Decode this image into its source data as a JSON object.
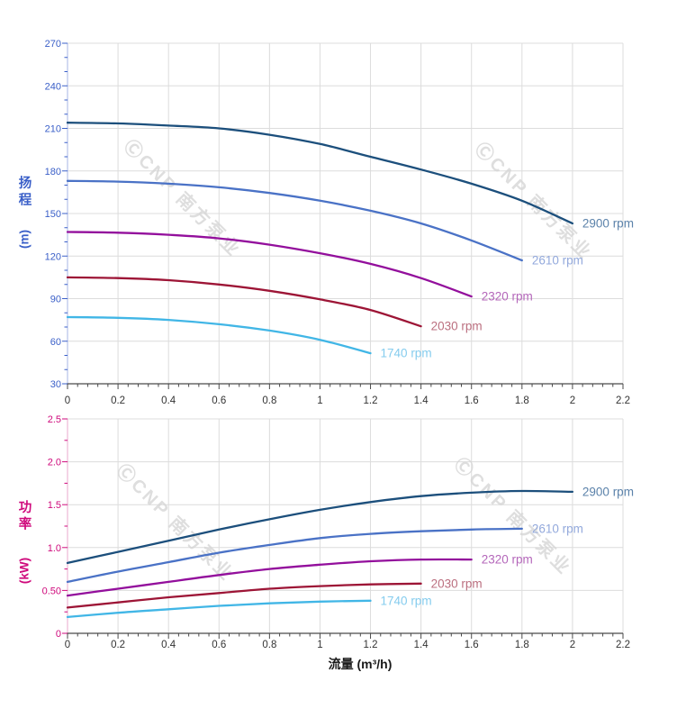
{
  "watermark": {
    "logo_glyph": "Ⓒ",
    "text": "CNP 南方泵业",
    "color": "#d6d6d6"
  },
  "x_axis_title": "流量 (m³/h)",
  "chart_data": [
    {
      "id": "head-vs-flow",
      "type": "line",
      "title": "",
      "ylabel": "扬程",
      "ylabel_unit": "(m)",
      "xlabel": "",
      "axis_color": "#3a5fc8",
      "axis_line_color": "#b6c1e8",
      "xlim": [
        0,
        2.2
      ],
      "ylim": [
        30,
        270
      ],
      "grid": true,
      "legend_position": "inline-right-of-curve-end",
      "xticks": {
        "major_step": 0.2,
        "minor_step": 0.04,
        "labels": [
          "0",
          "0.2",
          "0.4",
          "0.6",
          "0.8",
          "1",
          "1.2",
          "1.4",
          "1.6",
          "1.8",
          "2",
          "2.2"
        ]
      },
      "yticks": {
        "major_step": 30,
        "minor_step": 10,
        "labels": [
          "30",
          "60",
          "90",
          "120",
          "150",
          "180",
          "210",
          "240",
          "270"
        ]
      },
      "series": [
        {
          "label": "2900 rpm",
          "color": "#1c4f7c",
          "label_color": "#5b82aa",
          "points": [
            [
              0,
              214
            ],
            [
              0.2,
              213.5
            ],
            [
              0.4,
              212
            ],
            [
              0.6,
              210
            ],
            [
              0.8,
              205.5
            ],
            [
              1,
              199
            ],
            [
              1.2,
              190
            ],
            [
              1.4,
              181
            ],
            [
              1.6,
              171
            ],
            [
              1.8,
              159
            ],
            [
              2,
              143
            ]
          ]
        },
        {
          "label": "2610 rpm",
          "color": "#4a72c6",
          "label_color": "#93a9dc",
          "points": [
            [
              0,
              173
            ],
            [
              0.2,
              172.5
            ],
            [
              0.4,
              171
            ],
            [
              0.6,
              168.5
            ],
            [
              0.8,
              164.5
            ],
            [
              1,
              159
            ],
            [
              1.2,
              152
            ],
            [
              1.4,
              143
            ],
            [
              1.6,
              131
            ],
            [
              1.8,
              117
            ]
          ]
        },
        {
          "label": "2320 rpm",
          "color": "#930f9c",
          "label_color": "#b467ba",
          "points": [
            [
              0,
              137
            ],
            [
              0.2,
              136.5
            ],
            [
              0.4,
              135
            ],
            [
              0.6,
              132.5
            ],
            [
              0.8,
              128
            ],
            [
              1,
              122
            ],
            [
              1.2,
              114.5
            ],
            [
              1.4,
              104.5
            ],
            [
              1.6,
              91.5
            ]
          ]
        },
        {
          "label": "2030 rpm",
          "color": "#9d1536",
          "label_color": "#bb6f7f",
          "points": [
            [
              0,
              105
            ],
            [
              0.2,
              104.5
            ],
            [
              0.4,
              103
            ],
            [
              0.6,
              100
            ],
            [
              0.8,
              95.5
            ],
            [
              1,
              89.5
            ],
            [
              1.2,
              82
            ],
            [
              1.4,
              70.5
            ]
          ]
        },
        {
          "label": "1740 rpm",
          "color": "#41b6e6",
          "label_color": "#85ccee",
          "points": [
            [
              0,
              77
            ],
            [
              0.2,
              76.5
            ],
            [
              0.4,
              75
            ],
            [
              0.6,
              72
            ],
            [
              0.8,
              67.5
            ],
            [
              1,
              61
            ],
            [
              1.2,
              51.5
            ]
          ]
        }
      ]
    },
    {
      "id": "power-vs-flow",
      "type": "line",
      "title": "",
      "ylabel": "功率",
      "ylabel_unit": "(kW)",
      "xlabel": "流量 (m³/h)",
      "axis_color": "#cf0a7c",
      "axis_line_color": "#ecb8d6",
      "xlim": [
        0,
        2.2
      ],
      "ylim": [
        0,
        2.5
      ],
      "grid": true,
      "legend_position": "inline-right-of-curve-end",
      "xticks": {
        "major_step": 0.2,
        "minor_step": 0.04,
        "labels": [
          "0",
          "0.2",
          "0.4",
          "0.6",
          "0.8",
          "1",
          "1.2",
          "1.4",
          "1.6",
          "1.8",
          "2",
          "2.2"
        ]
      },
      "yticks": {
        "major_step": 0.5,
        "minor_step": 0.25,
        "labels": [
          "0",
          "0.50",
          "1.0",
          "1.5",
          "2.0",
          "2.5"
        ]
      },
      "series": [
        {
          "label": "2900 rpm",
          "color": "#1c4f7c",
          "label_color": "#5b82aa",
          "points": [
            [
              0,
              0.82
            ],
            [
              0.2,
              0.95
            ],
            [
              0.4,
              1.08
            ],
            [
              0.6,
              1.21
            ],
            [
              0.8,
              1.33
            ],
            [
              1,
              1.44
            ],
            [
              1.2,
              1.53
            ],
            [
              1.4,
              1.6
            ],
            [
              1.6,
              1.64
            ],
            [
              1.8,
              1.66
            ],
            [
              2,
              1.65
            ]
          ]
        },
        {
          "label": "2610 rpm",
          "color": "#4a72c6",
          "label_color": "#93a9dc",
          "points": [
            [
              0,
              0.6
            ],
            [
              0.2,
              0.72
            ],
            [
              0.4,
              0.83
            ],
            [
              0.6,
              0.94
            ],
            [
              0.8,
              1.03
            ],
            [
              1,
              1.11
            ],
            [
              1.2,
              1.16
            ],
            [
              1.4,
              1.19
            ],
            [
              1.6,
              1.21
            ],
            [
              1.8,
              1.22
            ]
          ]
        },
        {
          "label": "2320 rpm",
          "color": "#930f9c",
          "label_color": "#b467ba",
          "points": [
            [
              0,
              0.44
            ],
            [
              0.2,
              0.52
            ],
            [
              0.4,
              0.6
            ],
            [
              0.6,
              0.68
            ],
            [
              0.8,
              0.75
            ],
            [
              1,
              0.8
            ],
            [
              1.2,
              0.84
            ],
            [
              1.4,
              0.86
            ],
            [
              1.6,
              0.86
            ]
          ]
        },
        {
          "label": "2030 rpm",
          "color": "#9d1536",
          "label_color": "#bb6f7f",
          "points": [
            [
              0,
              0.3
            ],
            [
              0.2,
              0.36
            ],
            [
              0.4,
              0.42
            ],
            [
              0.6,
              0.47
            ],
            [
              0.8,
              0.52
            ],
            [
              1,
              0.55
            ],
            [
              1.2,
              0.57
            ],
            [
              1.4,
              0.58
            ]
          ]
        },
        {
          "label": "1740 rpm",
          "color": "#41b6e6",
          "label_color": "#85ccee",
          "points": [
            [
              0,
              0.19
            ],
            [
              0.2,
              0.24
            ],
            [
              0.4,
              0.28
            ],
            [
              0.6,
              0.32
            ],
            [
              0.8,
              0.35
            ],
            [
              1,
              0.37
            ],
            [
              1.2,
              0.38
            ]
          ]
        }
      ]
    }
  ]
}
